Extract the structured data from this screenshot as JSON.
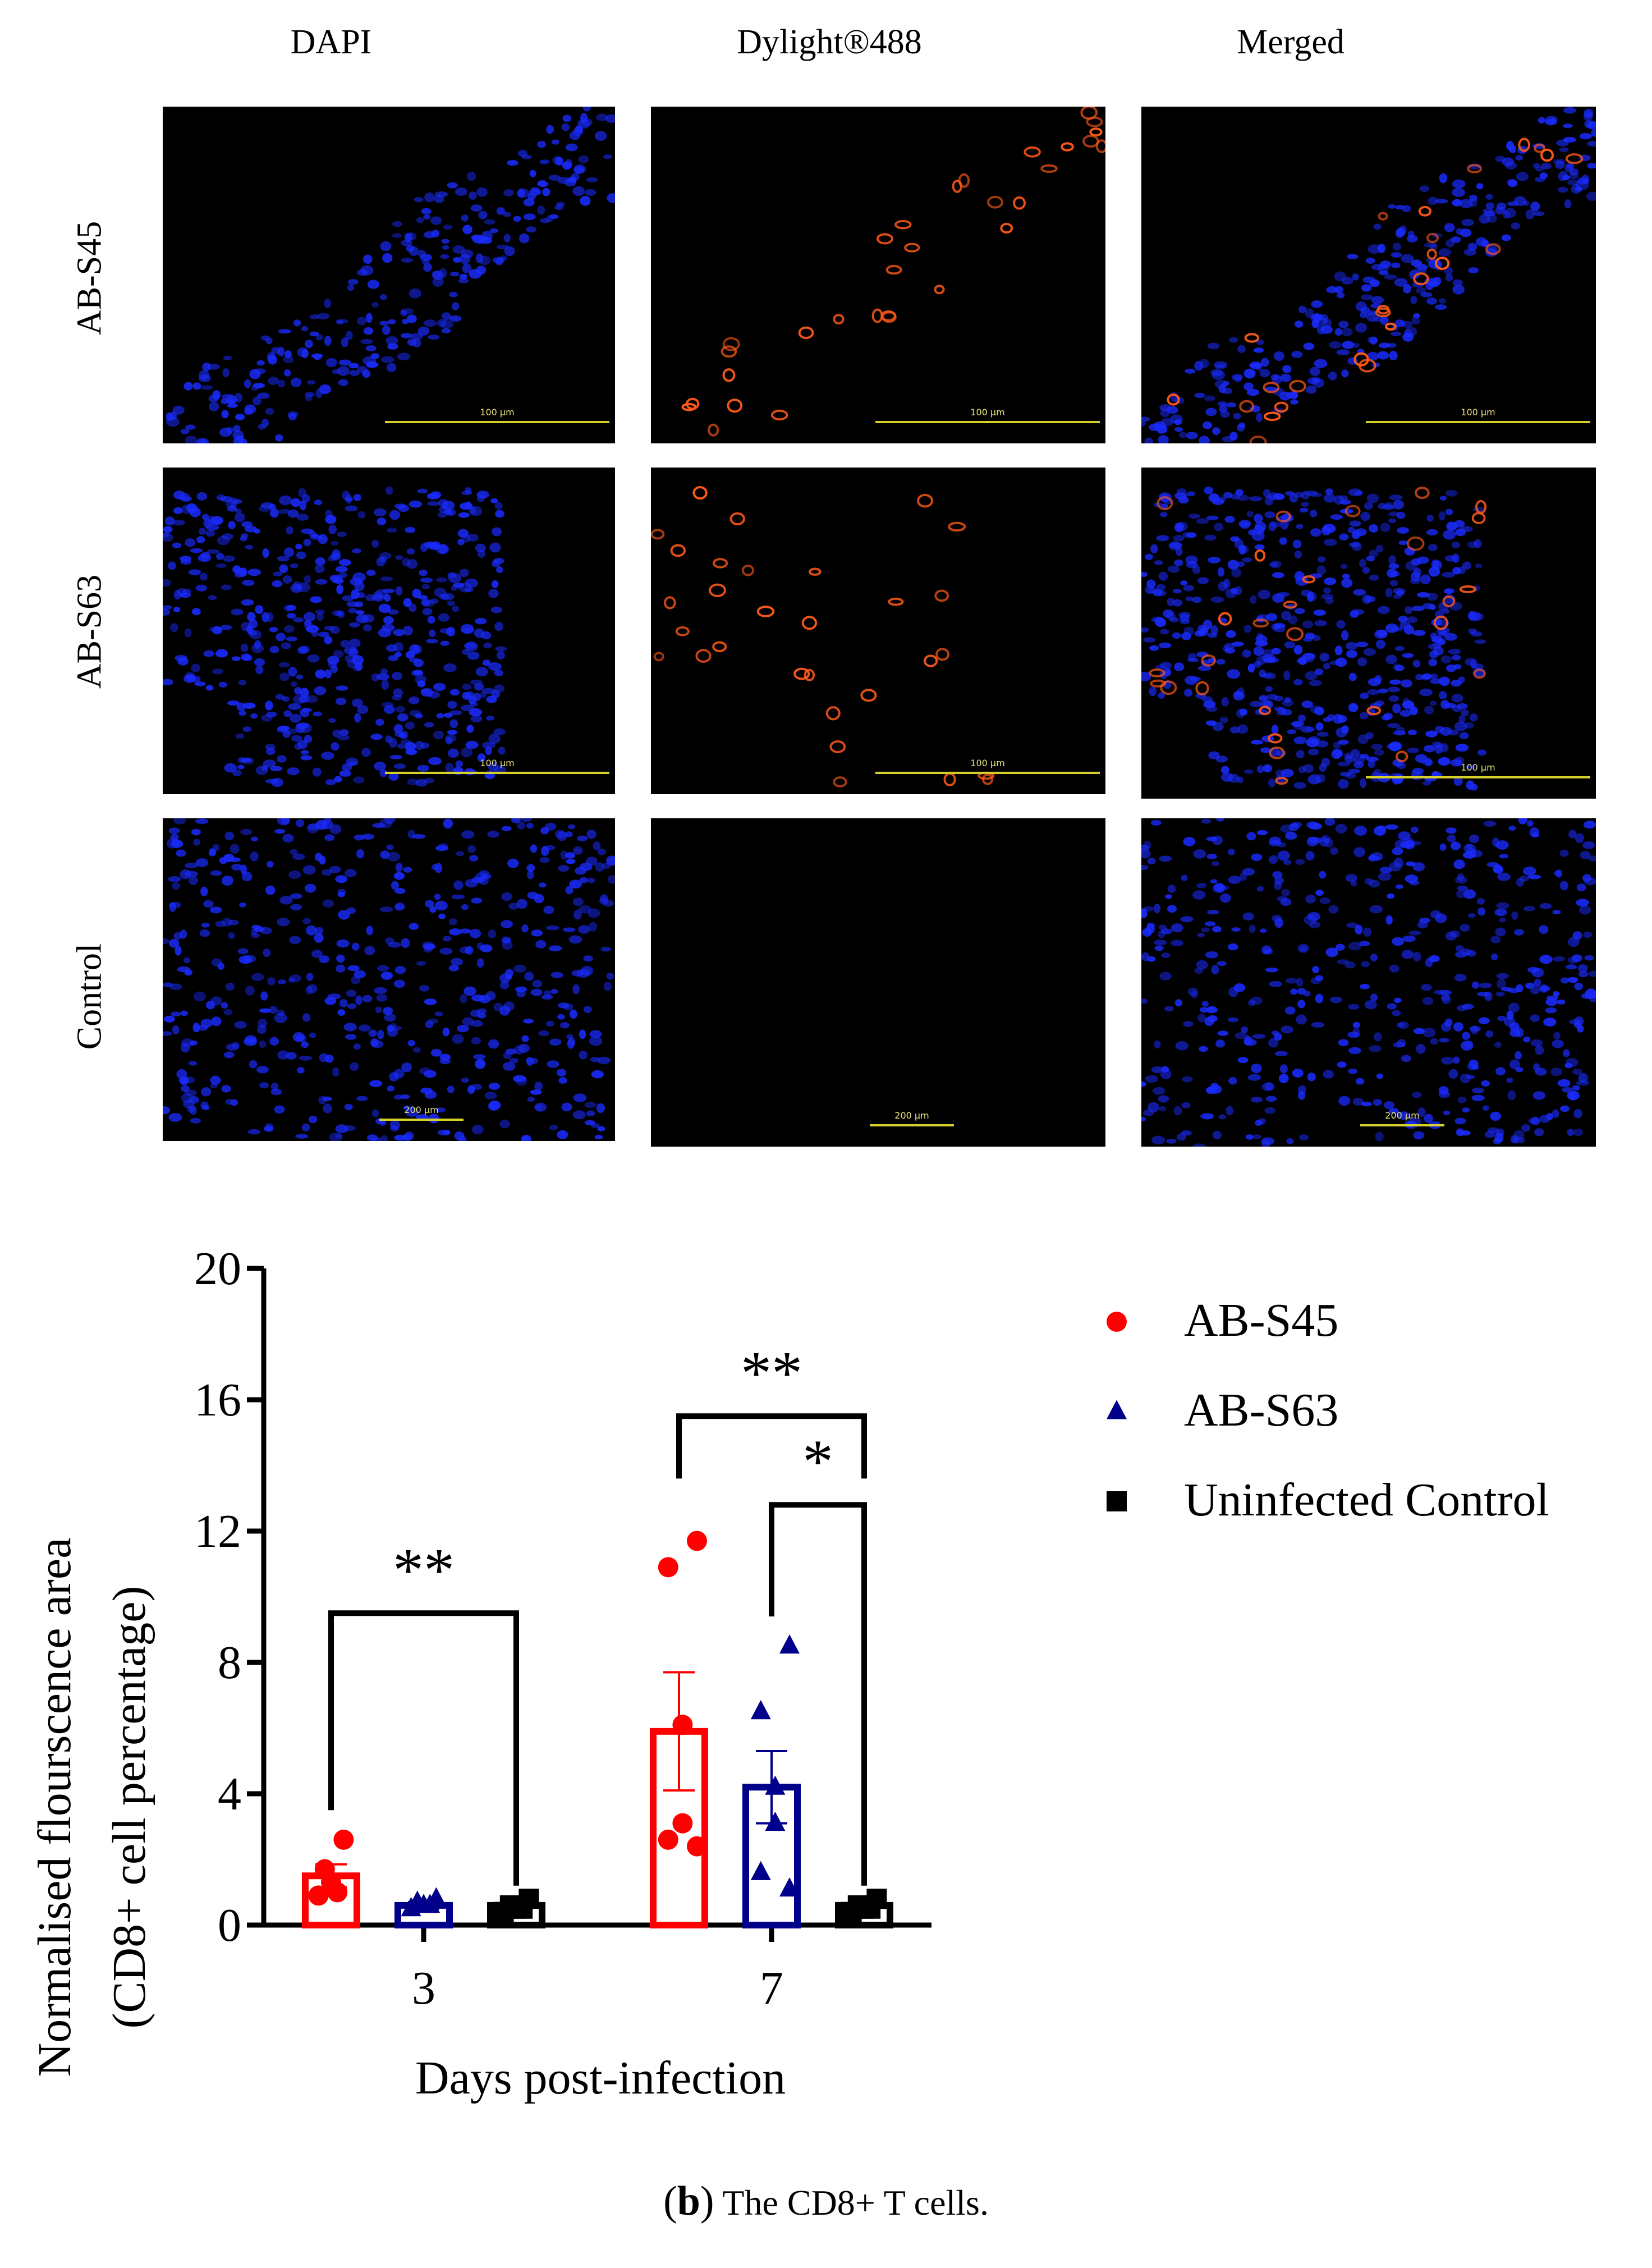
{
  "columns": [
    "DAPI",
    "Dylight®488",
    "Merged"
  ],
  "rows": [
    "AB-S45",
    "AB-S63",
    "Control"
  ],
  "scale_labels": [
    "100 µm",
    "100 µm",
    "200 µm"
  ],
  "colors": {
    "dapi": "#1a2bff",
    "stain": "#ff5a1a",
    "series": [
      "#ff0000",
      "#00008b",
      "#000000"
    ]
  },
  "chart_data": {
    "type": "bar",
    "categories": [
      "3",
      "7"
    ],
    "xlabel": "Days post-infection",
    "ylabel_line1": "Normalised flourscence area",
    "ylabel_line2": "(CD8+ cell percentage)",
    "ylim": [
      0,
      20
    ],
    "yticks": [
      "0",
      "4",
      "8",
      "12",
      "16",
      "20"
    ],
    "series": [
      {
        "name": "AB-S45",
        "marker": "circle",
        "values": [
          1.5,
          5.9
        ],
        "errors": [
          0.35,
          1.8
        ],
        "points": [
          [
            2.6,
            1.7,
            1.3,
            1.0,
            0.9
          ],
          [
            11.7,
            10.9,
            6.1,
            3.1,
            2.6,
            2.4
          ]
        ]
      },
      {
        "name": "AB-S63",
        "marker": "triangle",
        "values": [
          0.6,
          4.2
        ],
        "errors": [
          0.1,
          1.1
        ],
        "points": [
          [
            0.8,
            0.7,
            0.6,
            0.6,
            0.5
          ],
          [
            8.5,
            6.5,
            4.2,
            3.1,
            1.6,
            1.1
          ]
        ]
      },
      {
        "name": "Uninfected Control",
        "marker": "square",
        "values": [
          0.6,
          0.6
        ],
        "errors": [
          0.05,
          0.05
        ],
        "points": [
          [
            0.8,
            0.6,
            0.5,
            0.5,
            0.4
          ],
          [
            0.8,
            0.6,
            0.5,
            0.5,
            0.4
          ]
        ]
      }
    ],
    "significance": [
      {
        "label": "**",
        "day": "3",
        "from": "AB-S45",
        "to": "Uninfected Control"
      },
      {
        "label": "**",
        "day": "7",
        "from": "AB-S45",
        "to": "Uninfected Control"
      },
      {
        "label": "*",
        "day": "7",
        "from": "AB-S63",
        "to": "Uninfected Control"
      }
    ]
  },
  "caption": {
    "letter": "b",
    "text": " The CD8+ T cells."
  }
}
